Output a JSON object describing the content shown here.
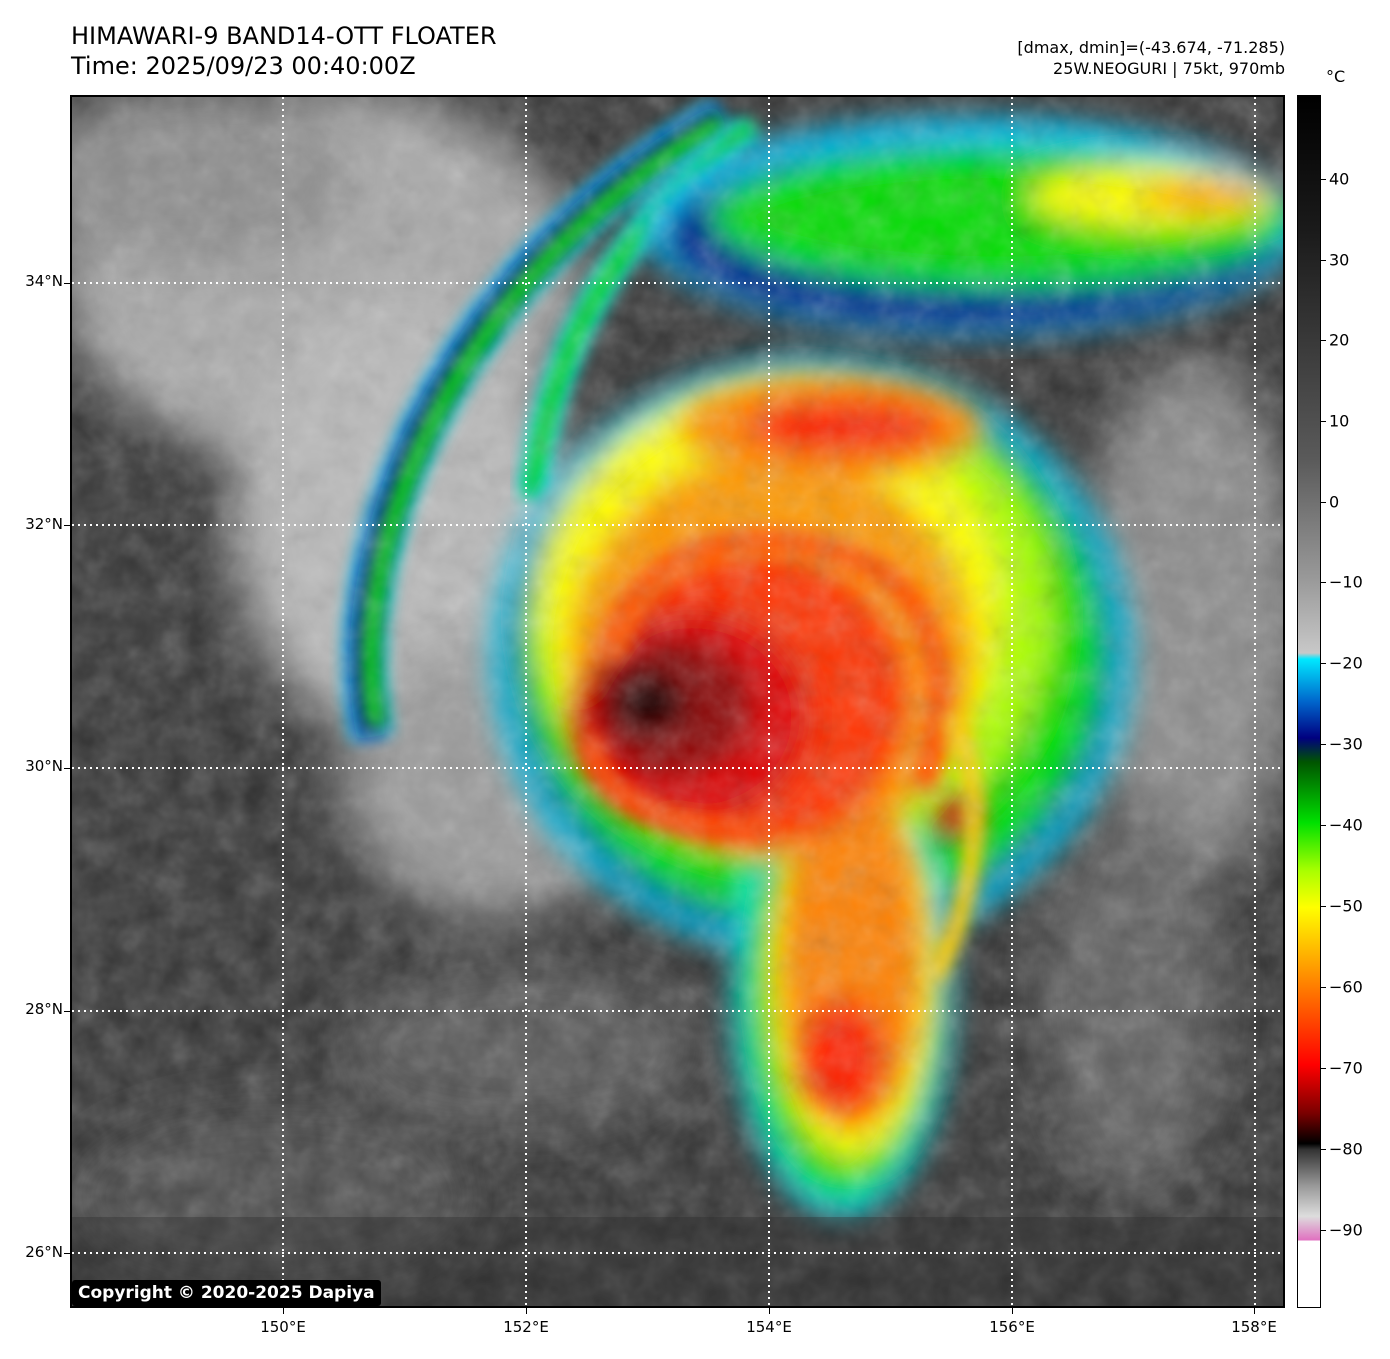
{
  "header": {
    "title_line1": "HIMAWARI-9 BAND14-OTT FLOATER",
    "title_line2": "Time: 2025/09/23 00:40:00Z",
    "info_line1": "[dmax, dmin]=(-43.674, -71.285)",
    "info_line2": "25W.NEOGURI | 75kt, 970mb"
  },
  "axes": {
    "latitude_labels": [
      "34°N",
      "32°N",
      "30°N",
      "28°N",
      "26°N"
    ],
    "longitude_labels": [
      "150°E",
      "152°E",
      "154°E",
      "156°E",
      "158°E"
    ]
  },
  "colorbar": {
    "unit": "°C",
    "tick_labels": [
      "40",
      "30",
      "20",
      "10",
      "0",
      "−10",
      "−20",
      "−30",
      "−40",
      "−50",
      "−60",
      "−70",
      "−80",
      "−90"
    ],
    "colors": {
      "cyan": "#00e8ff",
      "navy": "#000080",
      "green": "#00e000",
      "yellow": "#ffff00",
      "orange": "#ff8800",
      "red": "#ff0000",
      "darkred": "#7a0000",
      "black": "#000000",
      "magenta": "#aa0099",
      "pink": "#e070c0"
    }
  },
  "footer": {
    "copyright": "Copyright © 2020-2025 Dapiya"
  }
}
